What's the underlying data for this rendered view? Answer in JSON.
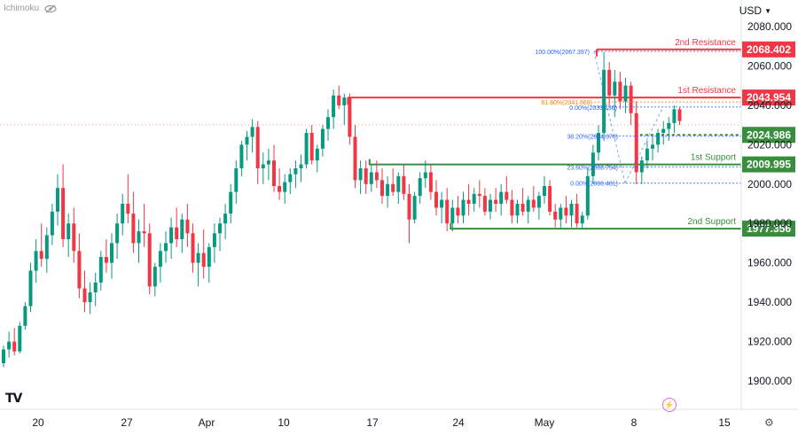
{
  "indicator_label": "Ichimoku",
  "currency": "USD",
  "logo_text": "TV",
  "chart_data": {
    "type": "candlestick",
    "symbol_currency": "USD",
    "y_axis": {
      "ylim": [
        1885,
        2092
      ],
      "ticks": [
        2080,
        2060,
        2040,
        2020,
        2000,
        1980,
        1960,
        1940,
        1920,
        1900
      ],
      "tick_labels": [
        "2080.000",
        "2060.000",
        "2040.000",
        "2020.000",
        "2000.000",
        "1980.000",
        "1960.000",
        "1940.000",
        "1920.000",
        "1900.000"
      ]
    },
    "x_axis": {
      "tick_labels": [
        "20",
        "27",
        "Apr",
        "10",
        "17",
        "24",
        "May",
        "8",
        "15"
      ]
    },
    "levels": [
      {
        "name": "2nd Resistance",
        "value": 2068.402,
        "label": "2068.402",
        "color": "#f23645",
        "from_bar": 110
      },
      {
        "name": "1st Resistance",
        "value": 2043.954,
        "label": "2043.954",
        "color": "#f23645",
        "from_bar": 64
      },
      {
        "name": "1st Support",
        "value": 2009.995,
        "label": "2009.995",
        "color": "#388e3c",
        "from_bar": 68
      },
      {
        "name": "2nd Support",
        "value": 1977.356,
        "label": "1977.356",
        "color": "#388e3c",
        "from_bar": 83
      }
    ],
    "pivot": {
      "value": 2024.986,
      "label": "2024.986",
      "color": "#388e3c",
      "from_bar": 118
    },
    "fib_levels": [
      {
        "label": "100.00%(2067.397)",
        "value": 2067.397,
        "color": "#2962ff"
      },
      {
        "label": "61.80%(2041.669)",
        "value": 2041.669,
        "color": "#f57c00"
      },
      {
        "label": "0.00%(2039.136)",
        "value": 2039.136,
        "color": "#2962ff"
      },
      {
        "label": "38.20%(2024.370)",
        "value": 2024.37,
        "color": "#2962ff"
      },
      {
        "label": "23.60%(2008.754)",
        "value": 2008.754,
        "color": "#2962ff"
      },
      {
        "label": "0.00%(2000.481)",
        "value": 2000.481,
        "color": "#2962ff"
      }
    ],
    "colors": {
      "up": "#26a69a",
      "down": "#ef5350",
      "up_candle": "#089981",
      "down_candle": "#f23645",
      "grid": "#f0f3fa"
    },
    "candles": [
      [
        1909,
        1918,
        1907,
        1916
      ],
      [
        1916,
        1925,
        1912,
        1920
      ],
      [
        1920,
        1927,
        1913,
        1915
      ],
      [
        1915,
        1930,
        1914,
        1928
      ],
      [
        1928,
        1940,
        1926,
        1938
      ],
      [
        1938,
        1960,
        1935,
        1956
      ],
      [
        1956,
        1972,
        1950,
        1966
      ],
      [
        1966,
        1980,
        1958,
        1962
      ],
      [
        1962,
        1978,
        1955,
        1974
      ],
      [
        1974,
        1990,
        1969,
        1986
      ],
      [
        1986,
        2005,
        1979,
        1998
      ],
      [
        1998,
        2010,
        1968,
        1972
      ],
      [
        1972,
        1985,
        1963,
        1980
      ],
      [
        1980,
        1988,
        1960,
        1966
      ],
      [
        1966,
        1975,
        1942,
        1947
      ],
      [
        1947,
        1956,
        1935,
        1940
      ],
      [
        1940,
        1950,
        1934,
        1945
      ],
      [
        1945,
        1955,
        1938,
        1950
      ],
      [
        1950,
        1966,
        1946,
        1963
      ],
      [
        1963,
        1972,
        1955,
        1960
      ],
      [
        1960,
        1975,
        1952,
        1970
      ],
      [
        1970,
        1985,
        1962,
        1980
      ],
      [
        1980,
        1995,
        1974,
        1990
      ],
      [
        1990,
        2005,
        1980,
        1985
      ],
      [
        1985,
        1996,
        1965,
        1970
      ],
      [
        1970,
        1982,
        1960,
        1976
      ],
      [
        1976,
        1990,
        1968,
        1975
      ],
      [
        1975,
        1980,
        1944,
        1948
      ],
      [
        1948,
        1960,
        1943,
        1958
      ],
      [
        1958,
        1970,
        1950,
        1966
      ],
      [
        1966,
        1976,
        1960,
        1970
      ],
      [
        1970,
        1983,
        1962,
        1978
      ],
      [
        1978,
        1988,
        1968,
        1972
      ],
      [
        1972,
        1985,
        1965,
        1982
      ],
      [
        1982,
        1990,
        1968,
        1975
      ],
      [
        1975,
        1980,
        1955,
        1960
      ],
      [
        1960,
        1970,
        1948,
        1965
      ],
      [
        1965,
        1977,
        1952,
        1958
      ],
      [
        1958,
        1970,
        1950,
        1968
      ],
      [
        1968,
        1980,
        1960,
        1975
      ],
      [
        1975,
        1983,
        1966,
        1980
      ],
      [
        1980,
        1990,
        1972,
        1985
      ],
      [
        1985,
        2000,
        1980,
        1996
      ],
      [
        1996,
        2012,
        1990,
        2008
      ],
      [
        2008,
        2022,
        2004,
        2020
      ],
      [
        2020,
        2027,
        2012,
        2024
      ],
      [
        2024,
        2033,
        2016,
        2029
      ],
      [
        2029,
        2032,
        2000,
        2008
      ],
      [
        2008,
        2016,
        2000,
        2010
      ],
      [
        2010,
        2018,
        2002,
        2012
      ],
      [
        2012,
        2020,
        1996,
        1999
      ],
      [
        1999,
        2008,
        1992,
        1996
      ],
      [
        1996,
        2005,
        1990,
        2001
      ],
      [
        2001,
        2008,
        1995,
        2005
      ],
      [
        2005,
        2012,
        1998,
        2008
      ],
      [
        2008,
        2015,
        2001,
        2010
      ],
      [
        2010,
        2028,
        2008,
        2026
      ],
      [
        2026,
        2030,
        2010,
        2012
      ],
      [
        2012,
        2020,
        2006,
        2018
      ],
      [
        2018,
        2030,
        2014,
        2028
      ],
      [
        2028,
        2038,
        2022,
        2034
      ],
      [
        2034,
        2048,
        2028,
        2045
      ],
      [
        2045,
        2050,
        2038,
        2040
      ],
      [
        2040,
        2046,
        2030,
        2044
      ],
      [
        2044,
        2046,
        2020,
        2024
      ],
      [
        2024,
        2030,
        1998,
        2002
      ],
      [
        2002,
        2012,
        1995,
        2008
      ],
      [
        2008,
        2012,
        1995,
        2000
      ],
      [
        2000,
        2010,
        1996,
        2006
      ],
      [
        2006,
        2012,
        1998,
        2002
      ],
      [
        2002,
        2008,
        1990,
        1994
      ],
      [
        1994,
        2004,
        1988,
        2000
      ],
      [
        2000,
        2008,
        1994,
        1996
      ],
      [
        1996,
        2006,
        1990,
        2004
      ],
      [
        2004,
        2010,
        1992,
        1995
      ],
      [
        1995,
        2000,
        1970,
        1982
      ],
      [
        1982,
        1996,
        1980,
        1994
      ],
      [
        1994,
        2006,
        1990,
        2003
      ],
      [
        2003,
        2012,
        1998,
        2006
      ],
      [
        2006,
        2010,
        1992,
        1996
      ],
      [
        1996,
        2002,
        1984,
        1988
      ],
      [
        1988,
        1996,
        1980,
        1992
      ],
      [
        1992,
        1998,
        1976,
        1980
      ],
      [
        1980,
        1992,
        1976,
        1988
      ],
      [
        1988,
        1994,
        1980,
        1984
      ],
      [
        1984,
        1996,
        1980,
        1992
      ],
      [
        1992,
        2000,
        1984,
        1990
      ],
      [
        1990,
        1998,
        1986,
        1995
      ],
      [
        1995,
        2002,
        1988,
        1994
      ],
      [
        1994,
        1998,
        1984,
        1986
      ],
      [
        1986,
        1995,
        1982,
        1992
      ],
      [
        1992,
        1998,
        1986,
        1990
      ],
      [
        1990,
        2000,
        1984,
        1996
      ],
      [
        1996,
        2004,
        1990,
        1992
      ],
      [
        1992,
        1997,
        1980,
        1984
      ],
      [
        1984,
        1992,
        1980,
        1990
      ],
      [
        1990,
        1998,
        1984,
        1986
      ],
      [
        1986,
        1994,
        1980,
        1992
      ],
      [
        1992,
        1999,
        1986,
        1988
      ],
      [
        1988,
        1996,
        1982,
        1994
      ],
      [
        1994,
        2004,
        1990,
        1999
      ],
      [
        1999,
        2002,
        1984,
        1986
      ],
      [
        1986,
        1990,
        1978,
        1982
      ],
      [
        1982,
        1990,
        1977,
        1988
      ],
      [
        1988,
        1994,
        1980,
        1984
      ],
      [
        1984,
        1992,
        1978,
        1990
      ],
      [
        1990,
        1995,
        1978,
        1980
      ],
      [
        1980,
        1986,
        1977,
        1984
      ],
      [
        1984,
        2008,
        1982,
        2004
      ],
      [
        2004,
        2020,
        2000,
        2016
      ],
      [
        2016,
        2030,
        2012,
        2026
      ],
      [
        2026,
        2067,
        2022,
        2058
      ],
      [
        2058,
        2062,
        2040,
        2045
      ],
      [
        2045,
        2058,
        2034,
        2052
      ],
      [
        2052,
        2057,
        2038,
        2042
      ],
      [
        2042,
        2054,
        2036,
        2050
      ],
      [
        2050,
        2052,
        2030,
        2036
      ],
      [
        2036,
        2042,
        2000,
        2006
      ],
      [
        2006,
        2014,
        2000,
        2012
      ],
      [
        2012,
        2022,
        2008,
        2018
      ],
      [
        2018,
        2025,
        2012,
        2020
      ],
      [
        2020,
        2028,
        2016,
        2026
      ],
      [
        2026,
        2032,
        2020,
        2028
      ],
      [
        2028,
        2034,
        2022,
        2031
      ],
      [
        2031,
        2040,
        2026,
        2038
      ],
      [
        2038,
        2039,
        2030,
        2032
      ]
    ]
  }
}
